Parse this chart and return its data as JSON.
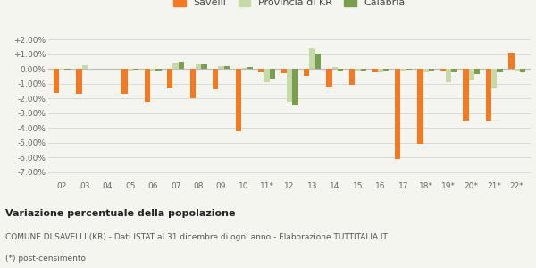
{
  "categories": [
    "02",
    "03",
    "04",
    "05",
    "06",
    "07",
    "08",
    "09",
    "10",
    "11*",
    "12",
    "13",
    "14",
    "15",
    "16",
    "17",
    "18*",
    "19*",
    "20*",
    "21*",
    "22*"
  ],
  "savelli": [
    -1.6,
    -1.7,
    0.0,
    -1.7,
    -2.2,
    -1.3,
    -2.0,
    -1.4,
    -4.2,
    -0.2,
    -0.3,
    -0.5,
    -1.2,
    -1.1,
    -0.2,
    -6.1,
    -5.1,
    -0.1,
    -3.5,
    -3.5,
    1.1
  ],
  "provincia_kr": [
    -0.05,
    0.25,
    0.0,
    -0.1,
    -0.1,
    0.45,
    0.3,
    0.2,
    0.1,
    -0.9,
    -2.2,
    1.4,
    0.15,
    -0.15,
    -0.2,
    -0.1,
    -0.25,
    -0.9,
    -0.8,
    -1.3,
    -0.15
  ],
  "calabria": [
    -0.05,
    0.0,
    0.0,
    -0.05,
    -0.1,
    0.5,
    0.3,
    0.2,
    0.15,
    -0.65,
    -2.5,
    1.05,
    -0.1,
    -0.1,
    -0.1,
    -0.05,
    -0.1,
    -0.2,
    -0.35,
    -0.2,
    -0.2
  ],
  "savelli_color": "#f47920",
  "provincia_color": "#c8d9a8",
  "calabria_color": "#7a9e50",
  "bg_color": "#f5f5f0",
  "grid_color": "#d8d8d8",
  "ylim": [
    -7.5,
    2.5
  ],
  "yticks": [
    -7.0,
    -6.0,
    -5.0,
    -4.0,
    -3.0,
    -2.0,
    -1.0,
    0.0,
    1.0,
    2.0
  ],
  "ytick_labels": [
    "-7.00%",
    "-6.00%",
    "-5.00%",
    "-4.00%",
    "-3.00%",
    "-2.00%",
    "-1.00%",
    "0.00%",
    "+1.00%",
    "+2.00%"
  ],
  "title_bold": "Variazione percentuale della popolazione",
  "subtitle": "COMUNE DI SAVELLI (KR) - Dati ISTAT al 31 dicembre di ogni anno - Elaborazione TUTTITALIA.IT",
  "footnote": "(*) post-censimento",
  "legend_labels": [
    "Savelli",
    "Provincia di KR",
    "Calabria"
  ]
}
